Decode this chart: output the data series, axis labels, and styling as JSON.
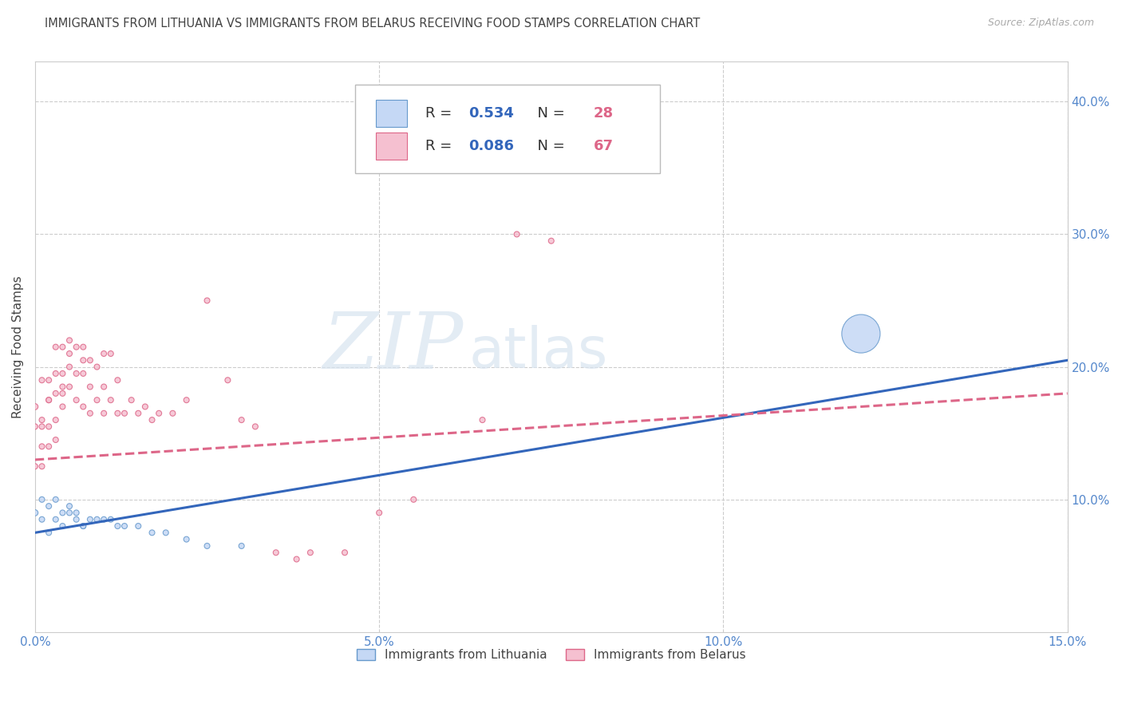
{
  "title": "IMMIGRANTS FROM LITHUANIA VS IMMIGRANTS FROM BELARUS RECEIVING FOOD STAMPS CORRELATION CHART",
  "source": "Source: ZipAtlas.com",
  "ylabel": "Receiving Food Stamps",
  "watermark_zip": "ZIP",
  "watermark_atlas": "atlas",
  "series": [
    {
      "name": "Immigrants from Lithuania",
      "color": "#c5d8f5",
      "edge_color": "#6699cc",
      "R": 0.534,
      "N": 28,
      "line_color": "#3366bb",
      "line_style": "solid",
      "x": [
        0.0,
        0.001,
        0.001,
        0.002,
        0.002,
        0.003,
        0.003,
        0.004,
        0.004,
        0.005,
        0.005,
        0.006,
        0.006,
        0.007,
        0.007,
        0.008,
        0.009,
        0.01,
        0.011,
        0.012,
        0.013,
        0.015,
        0.017,
        0.019,
        0.022,
        0.025,
        0.03,
        0.12
      ],
      "y": [
        0.09,
        0.085,
        0.1,
        0.075,
        0.095,
        0.085,
        0.1,
        0.09,
        0.08,
        0.09,
        0.095,
        0.085,
        0.09,
        0.08,
        0.08,
        0.085,
        0.085,
        0.085,
        0.085,
        0.08,
        0.08,
        0.08,
        0.075,
        0.075,
        0.07,
        0.065,
        0.065,
        0.225
      ],
      "size": [
        30,
        25,
        25,
        25,
        25,
        25,
        25,
        25,
        25,
        25,
        25,
        25,
        25,
        25,
        25,
        25,
        25,
        25,
        25,
        25,
        25,
        25,
        25,
        25,
        25,
        25,
        25,
        1200
      ]
    },
    {
      "name": "Immigrants from Belarus",
      "color": "#f5c0d0",
      "edge_color": "#dd6688",
      "R": 0.086,
      "N": 67,
      "line_color": "#dd6688",
      "line_style": "dashed",
      "x": [
        0.0,
        0.0,
        0.0,
        0.001,
        0.001,
        0.001,
        0.001,
        0.001,
        0.002,
        0.002,
        0.002,
        0.002,
        0.002,
        0.003,
        0.003,
        0.003,
        0.003,
        0.003,
        0.004,
        0.004,
        0.004,
        0.004,
        0.004,
        0.005,
        0.005,
        0.005,
        0.005,
        0.006,
        0.006,
        0.006,
        0.007,
        0.007,
        0.007,
        0.007,
        0.008,
        0.008,
        0.008,
        0.009,
        0.009,
        0.01,
        0.01,
        0.01,
        0.011,
        0.011,
        0.012,
        0.012,
        0.013,
        0.014,
        0.015,
        0.016,
        0.017,
        0.018,
        0.02,
        0.022,
        0.025,
        0.028,
        0.03,
        0.032,
        0.035,
        0.038,
        0.04,
        0.045,
        0.05,
        0.055,
        0.065,
        0.07,
        0.075
      ],
      "y": [
        0.17,
        0.155,
        0.125,
        0.155,
        0.14,
        0.16,
        0.19,
        0.125,
        0.175,
        0.155,
        0.14,
        0.175,
        0.19,
        0.145,
        0.16,
        0.18,
        0.195,
        0.215,
        0.17,
        0.18,
        0.195,
        0.215,
        0.185,
        0.2,
        0.185,
        0.22,
        0.21,
        0.175,
        0.195,
        0.215,
        0.17,
        0.205,
        0.195,
        0.215,
        0.165,
        0.185,
        0.205,
        0.175,
        0.2,
        0.165,
        0.185,
        0.21,
        0.175,
        0.21,
        0.165,
        0.19,
        0.165,
        0.175,
        0.165,
        0.17,
        0.16,
        0.165,
        0.165,
        0.175,
        0.25,
        0.19,
        0.16,
        0.155,
        0.06,
        0.055,
        0.06,
        0.06,
        0.09,
        0.1,
        0.16,
        0.3,
        0.295
      ],
      "size": [
        30,
        25,
        25,
        25,
        25,
        25,
        25,
        25,
        25,
        25,
        25,
        25,
        25,
        25,
        25,
        25,
        25,
        25,
        25,
        25,
        25,
        25,
        25,
        25,
        25,
        25,
        25,
        25,
        25,
        25,
        25,
        25,
        25,
        25,
        25,
        25,
        25,
        25,
        25,
        25,
        25,
        25,
        25,
        25,
        25,
        25,
        25,
        25,
        25,
        25,
        25,
        25,
        25,
        25,
        25,
        25,
        25,
        25,
        25,
        25,
        25,
        25,
        25,
        25,
        25,
        25,
        25
      ]
    }
  ],
  "xlim": [
    0.0,
    0.15
  ],
  "ylim": [
    0.0,
    0.43
  ],
  "xticks": [
    0.0,
    0.05,
    0.1,
    0.15
  ],
  "xticklabels": [
    "0.0%",
    "5.0%",
    "10.0%",
    "15.0%"
  ],
  "yticks_right": [
    0.1,
    0.2,
    0.3,
    0.4
  ],
  "ytick_labels_right": [
    "10.0%",
    "20.0%",
    "30.0%",
    "40.0%"
  ],
  "grid_color": "#cccccc",
  "background_color": "#ffffff",
  "title_fontsize": 10.5,
  "label_color": "#5588cc",
  "text_color": "#444444",
  "legend_color_lith": "#3366bb",
  "legend_color_bela": "#dd6688"
}
